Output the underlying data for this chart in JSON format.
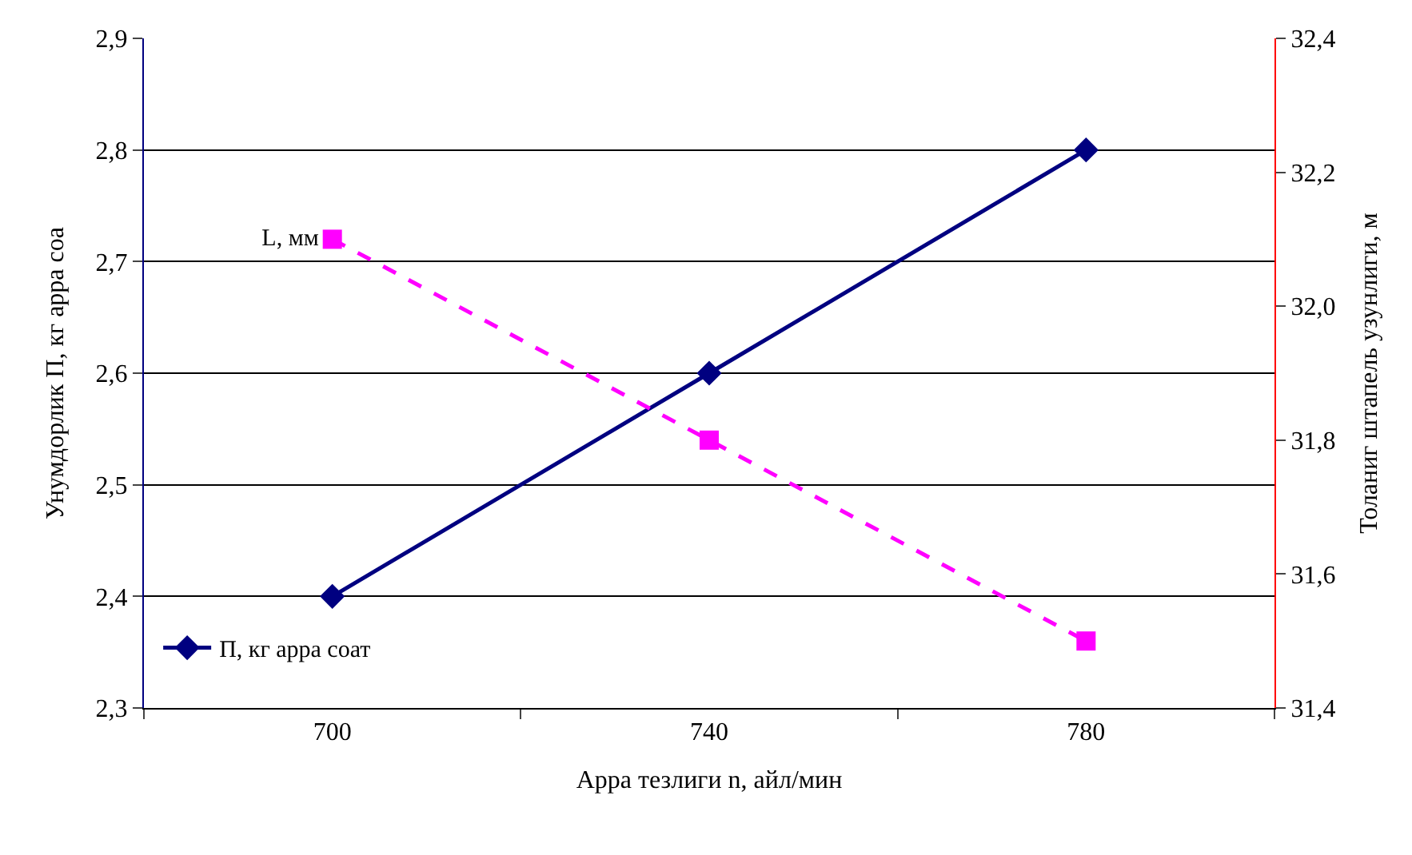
{
  "chart_data": {
    "type": "line",
    "xlabel": "Арра тезлиги n, айл/мин",
    "ylabel": "Унумдорлик П, кг арра соа",
    "y2label": "Толаниг штапель узунлиги, м",
    "categories": [
      "700",
      "740",
      "780"
    ],
    "series": [
      {
        "name": "П, кг арра соат",
        "color": "#000080",
        "values": [
          2.4,
          2.6,
          2.8
        ],
        "marker": "diamond",
        "line_style": "solid"
      },
      {
        "name": "L, мм",
        "color": "#ff00ff",
        "values": [
          32.1,
          31.8,
          31.5
        ],
        "axis": "y2",
        "marker": "square",
        "line_style": "dashed"
      }
    ],
    "ylim": [
      2.3,
      2.9
    ],
    "yticks": [
      {
        "value": 2.3,
        "label": "2,3"
      },
      {
        "value": 2.4,
        "label": "2,4"
      },
      {
        "value": 2.5,
        "label": "2,5"
      },
      {
        "value": 2.6,
        "label": "2,6"
      },
      {
        "value": 2.7,
        "label": "2,7"
      },
      {
        "value": 2.8,
        "label": "2,8"
      },
      {
        "value": 2.9,
        "label": "2,9"
      }
    ],
    "y2lim": [
      31.4,
      32.4
    ],
    "y2ticks": [
      {
        "value": 31.4,
        "label": "31,4"
      },
      {
        "value": 31.6,
        "label": "31,6"
      },
      {
        "value": 31.8,
        "label": "31,8"
      },
      {
        "value": 32.0,
        "label": "32,0"
      },
      {
        "value": 32.2,
        "label": "32,2"
      },
      {
        "value": 32.4,
        "label": "32,4"
      }
    ],
    "grid": "y",
    "legend": "bottom left"
  }
}
